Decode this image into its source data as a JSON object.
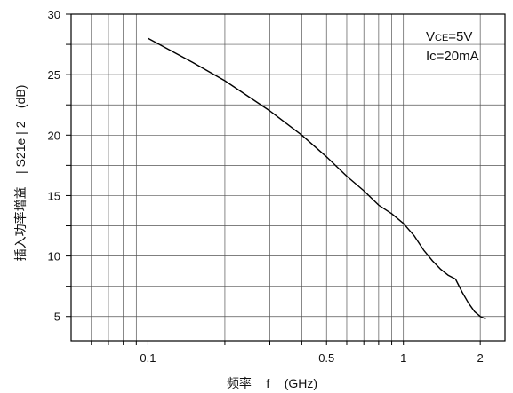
{
  "chart_data": {
    "type": "line",
    "x_scale": "log",
    "y_scale": "linear",
    "xlim": [
      0.05,
      2.5
    ],
    "ylim": [
      3,
      30
    ],
    "grid": true,
    "title": "",
    "xlabel": {
      "cjk": "频率",
      "symbol": "f",
      "unit": "(GHz)"
    },
    "ylabel": {
      "cjk": "插入功率增益",
      "symbol": "| S21e | 2",
      "unit": "(dB)"
    },
    "x_ticks": [
      {
        "value": 0.1,
        "label": "0.1"
      },
      {
        "value": 0.5,
        "label": "0.5"
      },
      {
        "value": 1,
        "label": "1"
      },
      {
        "value": 2,
        "label": "2"
      }
    ],
    "y_ticks": [
      {
        "value": 5,
        "label": "5"
      },
      {
        "value": 10,
        "label": "10"
      },
      {
        "value": 15,
        "label": "15"
      },
      {
        "value": 20,
        "label": "20"
      },
      {
        "value": 25,
        "label": "25"
      },
      {
        "value": 30,
        "label": "30"
      }
    ],
    "x_gridlines": [
      0.06,
      0.07,
      0.08,
      0.09,
      0.1,
      0.2,
      0.3,
      0.4,
      0.5,
      0.6,
      0.7,
      0.8,
      0.9,
      1,
      2
    ],
    "y_gridlines": [
      5,
      7.5,
      10,
      12.5,
      15,
      17.5,
      20,
      22.5,
      25,
      27.5,
      30
    ],
    "annotations": [
      {
        "main": "V",
        "sub": "CE",
        "rest": "=5V"
      },
      {
        "main": "Ic=20mA",
        "sub": "",
        "rest": ""
      }
    ],
    "series": [
      {
        "color": "#000000",
        "x": [
          0.1,
          0.15,
          0.2,
          0.3,
          0.4,
          0.5,
          0.6,
          0.7,
          0.8,
          0.9,
          1.0,
          1.1,
          1.2,
          1.3,
          1.4,
          1.5,
          1.6,
          1.7,
          1.8,
          1.9,
          2.0,
          2.1
        ],
        "y": [
          28.0,
          26.0,
          24.5,
          22.0,
          20.0,
          18.2,
          16.6,
          15.4,
          14.2,
          13.5,
          12.7,
          11.7,
          10.5,
          9.6,
          8.9,
          8.4,
          8.1,
          7.0,
          6.1,
          5.4,
          5.0,
          4.8
        ]
      }
    ]
  }
}
